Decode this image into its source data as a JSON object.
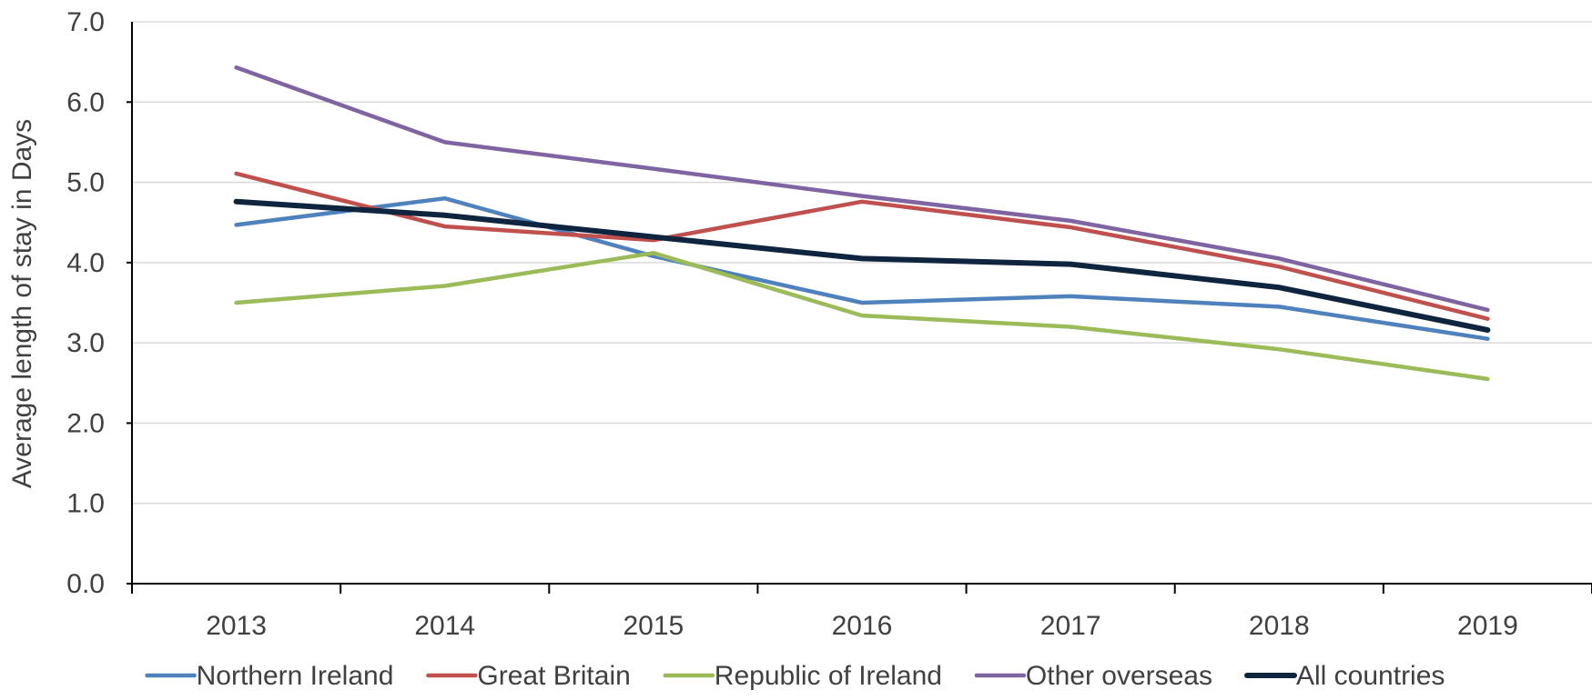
{
  "chart_data": {
    "type": "line",
    "title": "",
    "xlabel": "",
    "ylabel": "Average length of stay in Days",
    "categories": [
      "2013",
      "2014",
      "2015",
      "2016",
      "2017",
      "2018",
      "2019"
    ],
    "ylim": [
      0,
      7
    ],
    "yticks": [
      "0.0",
      "1.0",
      "2.0",
      "3.0",
      "4.0",
      "5.0",
      "6.0",
      "7.0"
    ],
    "grid": true,
    "legend_position": "bottom",
    "series": [
      {
        "name": "Northern Ireland",
        "color": "#4f81bd",
        "values": [
          4.47,
          4.8,
          4.08,
          3.5,
          3.58,
          3.45,
          3.05
        ]
      },
      {
        "name": "Great Britain",
        "color": "#c0504d",
        "values": [
          5.11,
          4.45,
          4.28,
          4.76,
          4.44,
          3.95,
          3.3
        ]
      },
      {
        "name": "Republic of Ireland",
        "color": "#9bbb59",
        "values": [
          3.5,
          3.71,
          4.12,
          3.34,
          3.2,
          2.92,
          2.55
        ]
      },
      {
        "name": "Other overseas",
        "color": "#8064a2",
        "values": [
          6.43,
          5.5,
          5.17,
          4.83,
          4.52,
          4.05,
          3.41
        ]
      },
      {
        "name": "All countries",
        "color": "#0f243e",
        "values": [
          4.76,
          4.59,
          4.32,
          4.05,
          3.98,
          3.69,
          3.16
        ]
      }
    ]
  }
}
